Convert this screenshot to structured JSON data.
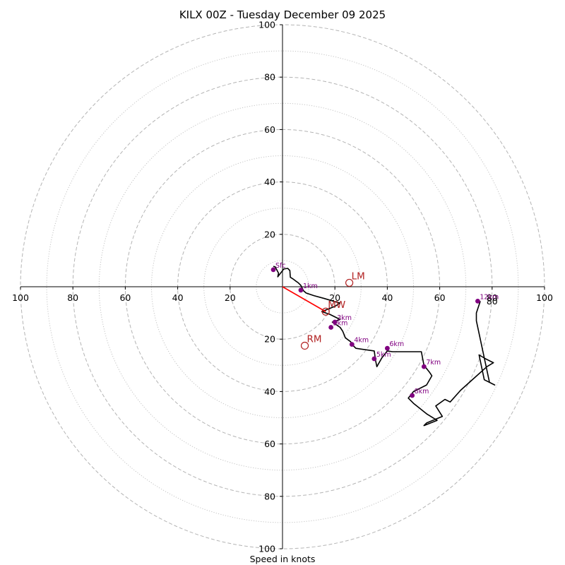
{
  "chart_data": {
    "type": "hodograph",
    "title": "KILX 00Z - Tuesday December 09 2025",
    "xlabel": "Speed in knots",
    "units": "knots",
    "range": [
      -100,
      100
    ],
    "major_rings": [
      20,
      40,
      60,
      80,
      100
    ],
    "minor_rings": [
      10,
      30,
      50,
      70,
      90
    ],
    "axis_ticks": [
      {
        "value": -100,
        "label": "100"
      },
      {
        "value": -80,
        "label": "80"
      },
      {
        "value": -60,
        "label": "60"
      },
      {
        "value": -40,
        "label": "40"
      },
      {
        "value": -20,
        "label": "20"
      },
      {
        "value": 20,
        "label": "20"
      },
      {
        "value": 40,
        "label": "40"
      },
      {
        "value": 60,
        "label": "60"
      },
      {
        "value": 80,
        "label": "80"
      },
      {
        "value": 100,
        "label": "100"
      }
    ],
    "ring_label_80": "80",
    "trace_color": "#000000",
    "trace": [
      [
        -3.5,
        7.8
      ],
      [
        -2.8,
        7.6
      ],
      [
        -1.5,
        5.2
      ],
      [
        -1.8,
        3.8
      ],
      [
        0.5,
        6.8
      ],
      [
        2,
        7.0
      ],
      [
        2.8,
        6.2
      ],
      [
        3,
        3.6
      ],
      [
        4,
        3
      ],
      [
        5,
        2.2
      ],
      [
        6,
        1.5
      ],
      [
        7,
        0.5
      ],
      [
        8,
        -1.5
      ],
      [
        9,
        -2.4
      ],
      [
        12,
        -3.4
      ],
      [
        16,
        -4.5
      ],
      [
        20,
        -5.7
      ],
      [
        22,
        -6.2
      ],
      [
        20,
        -7.5
      ],
      [
        15,
        -9.5
      ],
      [
        18,
        -10.5
      ],
      [
        22,
        -12.5
      ],
      [
        19,
        -13.5
      ],
      [
        22,
        -15.5
      ],
      [
        23,
        -17
      ],
      [
        24,
        -19.5
      ],
      [
        26,
        -21
      ],
      [
        27,
        -22.5
      ],
      [
        28,
        -23.5
      ],
      [
        35,
        -24.5
      ],
      [
        35.5,
        -28
      ],
      [
        36,
        -30.5
      ],
      [
        38,
        -27
      ],
      [
        40,
        -24.5
      ],
      [
        42,
        -24.8
      ],
      [
        45,
        -24.8
      ],
      [
        51,
        -24.8
      ],
      [
        53,
        -24.8
      ],
      [
        54,
        -30
      ],
      [
        56,
        -32.5
      ],
      [
        57,
        -34
      ],
      [
        55,
        -37.5
      ],
      [
        50,
        -40
      ],
      [
        48,
        -42.5
      ],
      [
        50,
        -44.5
      ],
      [
        55,
        -48.5
      ],
      [
        59,
        -51
      ],
      [
        54,
        -53
      ],
      [
        55,
        -52
      ],
      [
        61,
        -49.5
      ],
      [
        58.5,
        -45.5
      ],
      [
        62,
        -43
      ],
      [
        64,
        -44
      ],
      [
        68,
        -39.5
      ],
      [
        73,
        -35
      ],
      [
        78,
        -30.5
      ],
      [
        80.5,
        -29
      ],
      [
        77.5,
        -27.5
      ],
      [
        75,
        -26
      ],
      [
        77,
        -35.5
      ],
      [
        81,
        -37.5
      ],
      [
        79,
        -36.5
      ],
      [
        74,
        -13
      ],
      [
        74,
        -10
      ],
      [
        75.5,
        -5.5
      ]
    ],
    "height_markers": [
      {
        "label": "Sfc",
        "u": -3.5,
        "v": 6.5
      },
      {
        "label": "1km",
        "u": 7,
        "v": -1.3
      },
      {
        "label": "2km",
        "u": 18.5,
        "v": -15.5
      },
      {
        "label": "3km",
        "u": 20,
        "v": -13.5
      },
      {
        "label": "4km",
        "u": 26.5,
        "v": -22
      },
      {
        "label": "5km",
        "u": 35,
        "v": -27.5
      },
      {
        "label": "6km",
        "u": 40,
        "v": -23.5
      },
      {
        "label": "7km",
        "u": 54,
        "v": -30.5
      },
      {
        "label": "8km",
        "u": 49.5,
        "v": -41.5
      },
      {
        "label": "12km",
        "u": 74.5,
        "v": -5.5
      }
    ],
    "marker_color": "#800080",
    "storm_vectors": [
      {
        "label": "LM",
        "u": 25.5,
        "v": 1.5
      },
      {
        "label": "MW",
        "u": 16.5,
        "v": -9.5
      },
      {
        "label": "RM",
        "u": 8.5,
        "v": -22.5
      }
    ],
    "vector_color": "#b22222",
    "shear_line": {
      "from": [
        0,
        0
      ],
      "to": [
        16.5,
        -9.5
      ],
      "color": "#ff0000"
    }
  }
}
